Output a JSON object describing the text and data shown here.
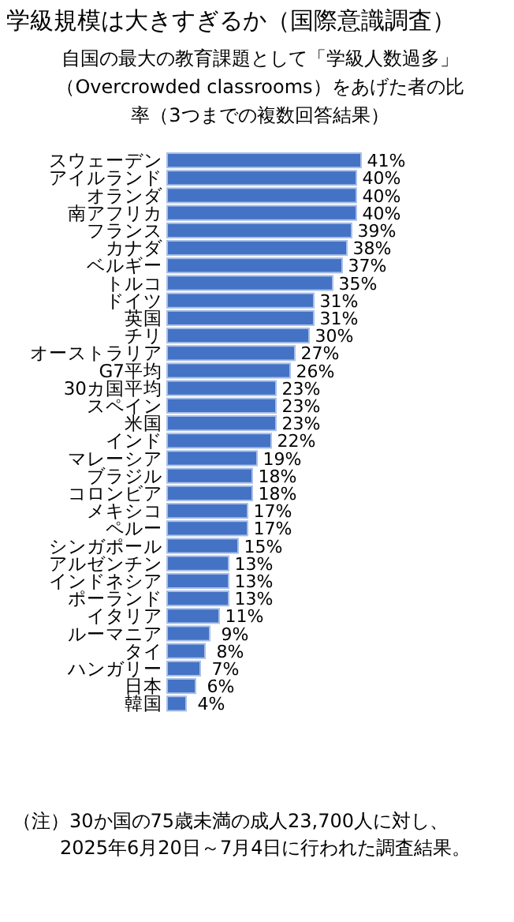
{
  "chart_data": {
    "type": "bar",
    "orientation": "horizontal",
    "title": "学級規模は大きすぎるか（国際意識調査）",
    "subtitle": "自国の最大の教育課題として「学級人数過多」（Overcrowded classrooms）をあげた者の比率（3つまでの複数回答結果）",
    "categories": [
      "スウェーデン",
      "アイルランド",
      "オランダ",
      "南アフリカ",
      "フランス",
      "カナダ",
      "ベルギー",
      "トルコ",
      "ドイツ",
      "英国",
      "チリ",
      "オーストラリア",
      "G7平均",
      "30カ国平均",
      "スペイン",
      "米国",
      "インド",
      "マレーシア",
      "ブラジル",
      "コロンビア",
      "メキシコ",
      "ペルー",
      "シンガポール",
      "アルゼンチン",
      "インドネシア",
      "ポーランド",
      "イタリア",
      "ルーマニア",
      "タイ",
      "ハンガリー",
      "日本",
      "韓国"
    ],
    "values": [
      41,
      40,
      40,
      40,
      39,
      38,
      37,
      35,
      31,
      31,
      30,
      27,
      26,
      23,
      23,
      23,
      22,
      19,
      18,
      18,
      17,
      17,
      15,
      13,
      13,
      13,
      11,
      9,
      8,
      7,
      6,
      4
    ],
    "value_labels": [
      "41%",
      "40%",
      "40%",
      "40%",
      "39%",
      "38%",
      "37%",
      "35%",
      "31%",
      "31%",
      "30%",
      "27%",
      "26%",
      "23%",
      "23%",
      "23%",
      "22%",
      "19%",
      "18%",
      "18%",
      "17%",
      "17%",
      "15%",
      "13%",
      "13%",
      "13%",
      "11%",
      "9%",
      "8%",
      "7%",
      "6%",
      "4%"
    ],
    "color": "#4472c4",
    "annotations": [
      "（注）30か国の75歳未満の成人23,700人に対し、2025年6月20日～7月4日に行われた調査結果。"
    ]
  }
}
